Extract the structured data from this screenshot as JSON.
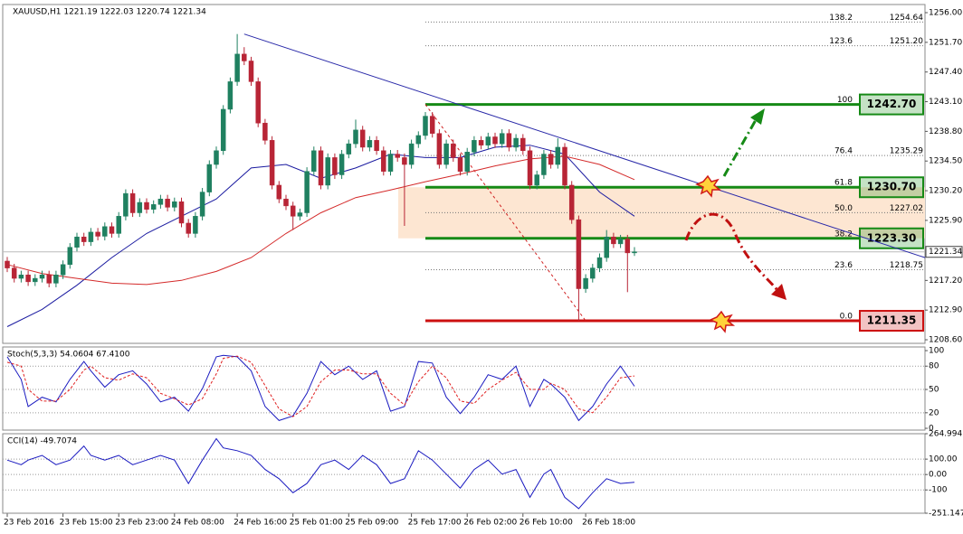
{
  "chart_data": [
    {
      "type": "candlestick",
      "title": "XAUUSD,H1  1221.19 1222.03 1220.74 1221.34",
      "categories": [
        "23 Feb 2016",
        null,
        null,
        null,
        null,
        null,
        null,
        null,
        "23 Feb 15:00",
        null,
        null,
        null,
        null,
        null,
        null,
        null,
        "23 Feb 23:00",
        null,
        null,
        null,
        null,
        null,
        null,
        null,
        "24 Feb 08:00",
        null,
        null,
        null,
        null,
        null,
        null,
        null,
        null,
        "24 Feb 16:00",
        null,
        null,
        null,
        null,
        null,
        null,
        null,
        "25 Feb 01:00",
        null,
        null,
        null,
        null,
        null,
        null,
        null,
        "25 Feb 09:00",
        null,
        null,
        null,
        null,
        null,
        null,
        null,
        null,
        "25 Feb 17:00",
        null,
        null,
        null,
        null,
        null,
        null,
        null,
        "26 Feb 02:00",
        null,
        null,
        null,
        null,
        null,
        null,
        null,
        "26 Feb 10:00",
        null,
        null,
        null,
        null,
        null,
        null,
        null,
        null,
        "26 Feb 18:00",
        null,
        null,
        null,
        null,
        null,
        null,
        null
      ],
      "open": [
        1220,
        1219,
        1217.5,
        1218,
        1217,
        1217.5,
        1218,
        1216.8,
        1218,
        1219.5,
        1222,
        1223.5,
        1222.8,
        1224.2,
        1223.6,
        1225,
        1224,
        1226.5,
        1229.8,
        1227,
        1228.5,
        1227.5,
        1228.2,
        1229,
        1227.8,
        1228.6,
        1225.5,
        1224,
        1226.5,
        1230,
        1234,
        1236,
        1242,
        1246,
        1250,
        1249,
        1246,
        1240,
        1237.5,
        1231,
        1229,
        1228,
        1226.5,
        1227,
        1233,
        1236,
        1231,
        1235,
        1232.5,
        1235.5,
        1237,
        1239,
        1236.5,
        1237.5,
        1236,
        1233,
        1235.5,
        1235,
        1234,
        1237,
        1238.2,
        1241,
        1238.5,
        1234,
        1237,
        1235,
        1233,
        1235.8,
        1237.5,
        1236.8,
        1238,
        1237,
        1238.5,
        1236.5,
        1237.8,
        1236,
        1231,
        1232.5,
        1235.5,
        1234,
        1236.5,
        1231,
        1226,
        1216,
        1217.5,
        1219,
        1220.5,
        1223.5,
        1222.5,
        1223.2,
        1221.19
      ],
      "high": [
        1220.6,
        1219.6,
        1218.6,
        1218.6,
        1218.1,
        1218.6,
        1218.6,
        1218.6,
        1220.1,
        1222.6,
        1224.1,
        1224.1,
        1224.8,
        1224.8,
        1225.6,
        1225.6,
        1227.1,
        1230.4,
        1230.4,
        1229.1,
        1229.1,
        1228.8,
        1229.6,
        1229.6,
        1229.2,
        1229.2,
        1226.1,
        1227.1,
        1230.6,
        1234.6,
        1236.6,
        1242.6,
        1246.6,
        1252.9,
        1251,
        1249.6,
        1246.6,
        1240.6,
        1238.1,
        1231.6,
        1229.6,
        1228.6,
        1227.6,
        1233.6,
        1236.6,
        1236.6,
        1235.6,
        1235.6,
        1236.1,
        1237.6,
        1240.5,
        1239.6,
        1238.1,
        1238.1,
        1236.6,
        1236.1,
        1236.1,
        1235.6,
        1237.6,
        1238.8,
        1241.6,
        1241.6,
        1239.1,
        1237.6,
        1237.6,
        1235.6,
        1236.4,
        1238.1,
        1238.1,
        1238.6,
        1238.6,
        1239.1,
        1239.1,
        1238.4,
        1238.4,
        1236.6,
        1233.1,
        1236.1,
        1236.1,
        1237.8,
        1237.1,
        1231.6,
        1226.6,
        1218.1,
        1219.6,
        1221.1,
        1224.5,
        1224.1,
        1223.8,
        1223.8,
        1222.03
      ],
      "low": [
        1218.4,
        1216.9,
        1216.9,
        1216.4,
        1216.4,
        1216.9,
        1216.2,
        1216.2,
        1217.4,
        1218.9,
        1221.4,
        1222.2,
        1222.2,
        1223,
        1223,
        1223.4,
        1223.4,
        1225.9,
        1226.4,
        1226.4,
        1226.9,
        1226.9,
        1227.6,
        1227.2,
        1227.2,
        1224.9,
        1223.4,
        1223.4,
        1225.9,
        1229.4,
        1233.4,
        1235.4,
        1241.4,
        1245.4,
        1248.4,
        1245.4,
        1239.4,
        1236.9,
        1230.4,
        1228.4,
        1227.4,
        1224.5,
        1225.9,
        1226.4,
        1232.4,
        1230.4,
        1230.4,
        1231.9,
        1231.9,
        1234.9,
        1236.4,
        1235.9,
        1235.9,
        1235.4,
        1232.4,
        1232.4,
        1234.4,
        1225.1,
        1233.4,
        1236.4,
        1237.6,
        1237.9,
        1233.4,
        1233.4,
        1234.4,
        1232.4,
        1232.4,
        1235.2,
        1236.2,
        1236.2,
        1236.4,
        1236.4,
        1235.9,
        1235.9,
        1235.4,
        1230.4,
        1230.4,
        1231.9,
        1233.4,
        1233.4,
        1230.4,
        1225.4,
        1211.35,
        1215.4,
        1216.9,
        1218.4,
        1219.9,
        1221.9,
        1221.9,
        1215.5,
        1220.74
      ],
      "close": [
        1219,
        1217.5,
        1218,
        1217,
        1217.5,
        1218,
        1216.8,
        1218,
        1219.5,
        1222,
        1223.5,
        1222.8,
        1224.2,
        1223.6,
        1225,
        1224,
        1226.5,
        1229.8,
        1227,
        1228.5,
        1227.5,
        1228.2,
        1229,
        1227.8,
        1228.6,
        1225.5,
        1224,
        1226.5,
        1230,
        1234,
        1236,
        1242,
        1246,
        1250,
        1249,
        1246,
        1240,
        1237.5,
        1231,
        1229,
        1228,
        1226.5,
        1227,
        1233,
        1236,
        1231,
        1235,
        1232.5,
        1235.5,
        1237,
        1239,
        1236.5,
        1237.5,
        1236,
        1233,
        1235.5,
        1235,
        1234,
        1237,
        1238.2,
        1241,
        1238.5,
        1234,
        1237,
        1235,
        1233,
        1235.8,
        1237.5,
        1236.8,
        1238,
        1237,
        1238.5,
        1236.5,
        1237.8,
        1236,
        1231,
        1232.5,
        1235.5,
        1234,
        1236.5,
        1231,
        1226,
        1216,
        1217.5,
        1219,
        1220.5,
        1223.5,
        1222.5,
        1223.2,
        1221.19,
        1221.34
      ],
      "up_color": "#1f8060",
      "down_color": "#b82536",
      "ylim": [
        1208.08,
        1257.18
      ],
      "yticks": [
        {
          "value": 1256,
          "label": "1256.00"
        },
        {
          "value": 1251.7,
          "label": "1251.70"
        },
        {
          "value": 1247.4,
          "label": "1247.40"
        },
        {
          "value": 1243.1,
          "label": "1243.10"
        },
        {
          "value": 1238.8,
          "label": "1238.80"
        },
        {
          "value": 1234.5,
          "label": "1234.50"
        },
        {
          "value": 1230.2,
          "label": "1230.20"
        },
        {
          "value": 1225.9,
          "label": "1225.90"
        },
        {
          "value": 1217.2,
          "label": "1217.20"
        },
        {
          "value": 1212.9,
          "label": "1212.90"
        },
        {
          "value": 1208.6,
          "label": "1208.60"
        }
      ],
      "moving_averages": [
        {
          "color": "#1a1aa0",
          "x": [
            0,
            5,
            10,
            15,
            20,
            25,
            30,
            35,
            40,
            45,
            50,
            55,
            60,
            65,
            70,
            75,
            80,
            85,
            90
          ],
          "values": [
            1210.5,
            1213,
            1216.5,
            1220.5,
            1224,
            1226.5,
            1229,
            1233.5,
            1234,
            1232,
            1233.5,
            1235.5,
            1235,
            1235,
            1236.5,
            1236.8,
            1235.5,
            1230,
            1226.5
          ]
        },
        {
          "color": "#d42a2a",
          "x": [
            0,
            5,
            10,
            15,
            20,
            25,
            30,
            35,
            40,
            45,
            50,
            55,
            60,
            65,
            70,
            75,
            80,
            85,
            90
          ],
          "values": [
            1219.5,
            1218.2,
            1217.5,
            1216.8,
            1216.6,
            1217.2,
            1218.5,
            1220.5,
            1224,
            1227,
            1229.2,
            1230.3,
            1231.5,
            1232.6,
            1233.8,
            1234.8,
            1235.2,
            1234,
            1231.8
          ]
        }
      ],
      "trendline": {
        "color": "#2828a8",
        "x": [
          34,
          131.7
        ],
        "values": [
          1252.9,
          1220.5
        ]
      },
      "fib_levels": [
        {
          "level": "138.2",
          "value": 1254.64
        },
        {
          "level": "123.6",
          "value": {
            "value": 1251.2,
            "label": "1251.20"
          }
        },
        {
          "level": "100",
          "value": {
            "value": 1242.7,
            "label": "1242.70"
          },
          "color": "#168a16"
        },
        {
          "level": "76.4",
          "value": 1235.29
        },
        {
          "level": "61.8",
          "value": {
            "value": 1230.7,
            "label": "1230.70"
          },
          "color": "#168a16"
        },
        {
          "level": "50.0",
          "value": 1227.02
        },
        {
          "level": "38.2",
          "value": {
            "value": 1223.3,
            "label": "1223.30"
          },
          "color": "#168a16"
        },
        {
          "level": "23.6",
          "value": 1218.75
        },
        {
          "level": "0.0",
          "value": 1211.35,
          "color": "#cc1010"
        }
      ],
      "zone_color": "#fde6d2"
    },
    {
      "type": "line",
      "title": "Stoch(5,3,3) 54.0604 67.4100",
      "x": [
        0,
        2,
        3,
        5,
        7,
        9,
        11,
        12,
        14,
        16,
        18,
        20,
        22,
        24,
        26,
        28,
        30,
        31,
        33,
        35,
        37,
        39,
        41,
        43,
        45,
        47,
        49,
        51,
        53,
        55,
        57,
        59,
        61,
        63,
        65,
        67,
        69,
        71,
        73,
        75,
        77,
        78,
        80,
        82,
        84,
        86,
        88,
        90
      ],
      "series": [
        {
          "color": "#1a1ac0",
          "values": [
            92,
            63,
            28,
            40,
            34,
            63,
            86,
            74,
            53,
            69,
            74,
            57,
            34,
            40,
            22,
            51,
            92,
            94,
            92,
            74,
            28,
            10,
            16,
            45,
            86,
            69,
            80,
            63,
            74,
            22,
            28,
            86,
            84,
            40,
            19,
            40,
            69,
            63,
            80,
            28,
            63,
            57,
            40,
            10,
            28,
            57,
            80,
            54.0604
          ]
        },
        {
          "color": "#e02020",
          "dashed": true,
          "values": [
            85,
            80,
            50,
            35,
            35,
            50,
            75,
            80,
            65,
            62,
            70,
            65,
            45,
            38,
            30,
            38,
            70,
            90,
            93,
            85,
            55,
            25,
            15,
            28,
            60,
            75,
            75,
            70,
            70,
            45,
            30,
            60,
            80,
            65,
            35,
            32,
            50,
            62,
            72,
            50,
            50,
            58,
            50,
            25,
            20,
            40,
            65,
            67.41
          ]
        }
      ],
      "ylim": [
        -2.3,
        104.7
      ],
      "yticks": [
        100,
        80,
        50,
        20,
        0
      ]
    },
    {
      "type": "line",
      "title": "CCI(14) -49.7074",
      "x": [
        0,
        2,
        3,
        5,
        7,
        9,
        11,
        12,
        14,
        16,
        18,
        20,
        22,
        24,
        26,
        28,
        30,
        31,
        33,
        35,
        37,
        39,
        41,
        43,
        45,
        47,
        49,
        51,
        53,
        55,
        57,
        59,
        61,
        63,
        65,
        67,
        69,
        71,
        73,
        75,
        77,
        78,
        80,
        82,
        84,
        86,
        88,
        90
      ],
      "series": [
        {
          "color": "#1a1ac0",
          "values": [
            94,
            64,
            94,
            124,
            64,
            94,
            185,
            124,
            94,
            124,
            64,
            94,
            124,
            94,
            -58,
            94,
            233,
            173,
            155,
            124,
            33,
            -27,
            -118,
            -58,
            64,
            94,
            33,
            124,
            64,
            -58,
            -27,
            155,
            94,
            3,
            -88,
            33,
            94,
            3,
            33,
            -148,
            3,
            33,
            -148,
            -221,
            -118,
            -27,
            -58,
            -49.7074
          ]
        }
      ],
      "ylim": [
        -251.147,
        264.994
      ],
      "yticks": [
        264.994,
        {
          "value": 100,
          "label": "100.00"
        },
        {
          "value": 0,
          "label": "0.00"
        },
        -100,
        -251.147
      ]
    }
  ]
}
